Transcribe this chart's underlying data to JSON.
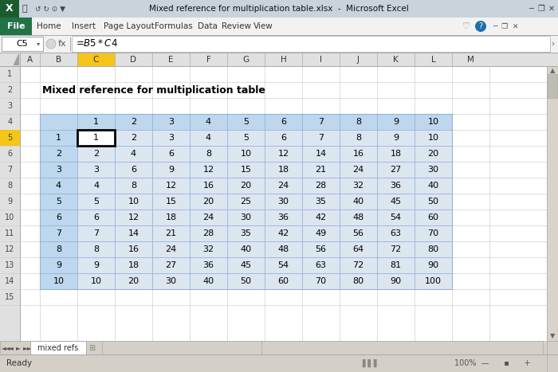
{
  "title": "Mixed reference for multiplication table",
  "formula_bar_text": "=$B5*C$4",
  "cell_ref": "C5",
  "col_headers": [
    "",
    "1",
    "2",
    "3",
    "4",
    "5",
    "6",
    "7",
    "8",
    "9",
    "10"
  ],
  "row_headers": [
    "1",
    "2",
    "3",
    "4",
    "5",
    "6",
    "7",
    "8",
    "9",
    "10"
  ],
  "table_data": [
    [
      1,
      2,
      3,
      4,
      5,
      6,
      7,
      8,
      9,
      10
    ],
    [
      2,
      4,
      6,
      8,
      10,
      12,
      14,
      16,
      18,
      20
    ],
    [
      3,
      6,
      9,
      12,
      15,
      18,
      21,
      24,
      27,
      30
    ],
    [
      4,
      8,
      12,
      16,
      20,
      24,
      28,
      32,
      36,
      40
    ],
    [
      5,
      10,
      15,
      20,
      25,
      30,
      35,
      40,
      45,
      50
    ],
    [
      6,
      12,
      18,
      24,
      30,
      36,
      42,
      48,
      54,
      60
    ],
    [
      7,
      14,
      21,
      28,
      35,
      42,
      49,
      56,
      63,
      70
    ],
    [
      8,
      16,
      24,
      32,
      40,
      48,
      56,
      64,
      72,
      80
    ],
    [
      9,
      18,
      27,
      36,
      45,
      54,
      63,
      72,
      81,
      90
    ],
    [
      10,
      20,
      30,
      40,
      50,
      60,
      70,
      80,
      90,
      100
    ]
  ],
  "table_bg": "#DCE6F1",
  "table_border": "#95B3D7",
  "header_row_bg": "#BDD7EE",
  "header_col_bg": "#BDD7EE",
  "file_btn_color": "#217346",
  "title_bar_bg": "#C8D3DC",
  "ribbon_bg": "#EEF0F2",
  "tab_bar_bg": "#F2F2F2",
  "formula_bar_bg": "#F2F2F2",
  "sheet_bg": "#FFFFFF",
  "col_header_bg": "#E0E0E0",
  "row_header_bg": "#E0E0E0",
  "col_header_selected_bg": "#F5C518",
  "row_header_selected_bg": "#F5C518",
  "status_bar_bg": "#D4D0C8",
  "grid_line_color": "#D0D0D0",
  "separator_color": "#AAAAAA",
  "cell_border_color": "#000000",
  "text_dark": "#000000",
  "text_mid": "#444444",
  "text_light": "#888888"
}
